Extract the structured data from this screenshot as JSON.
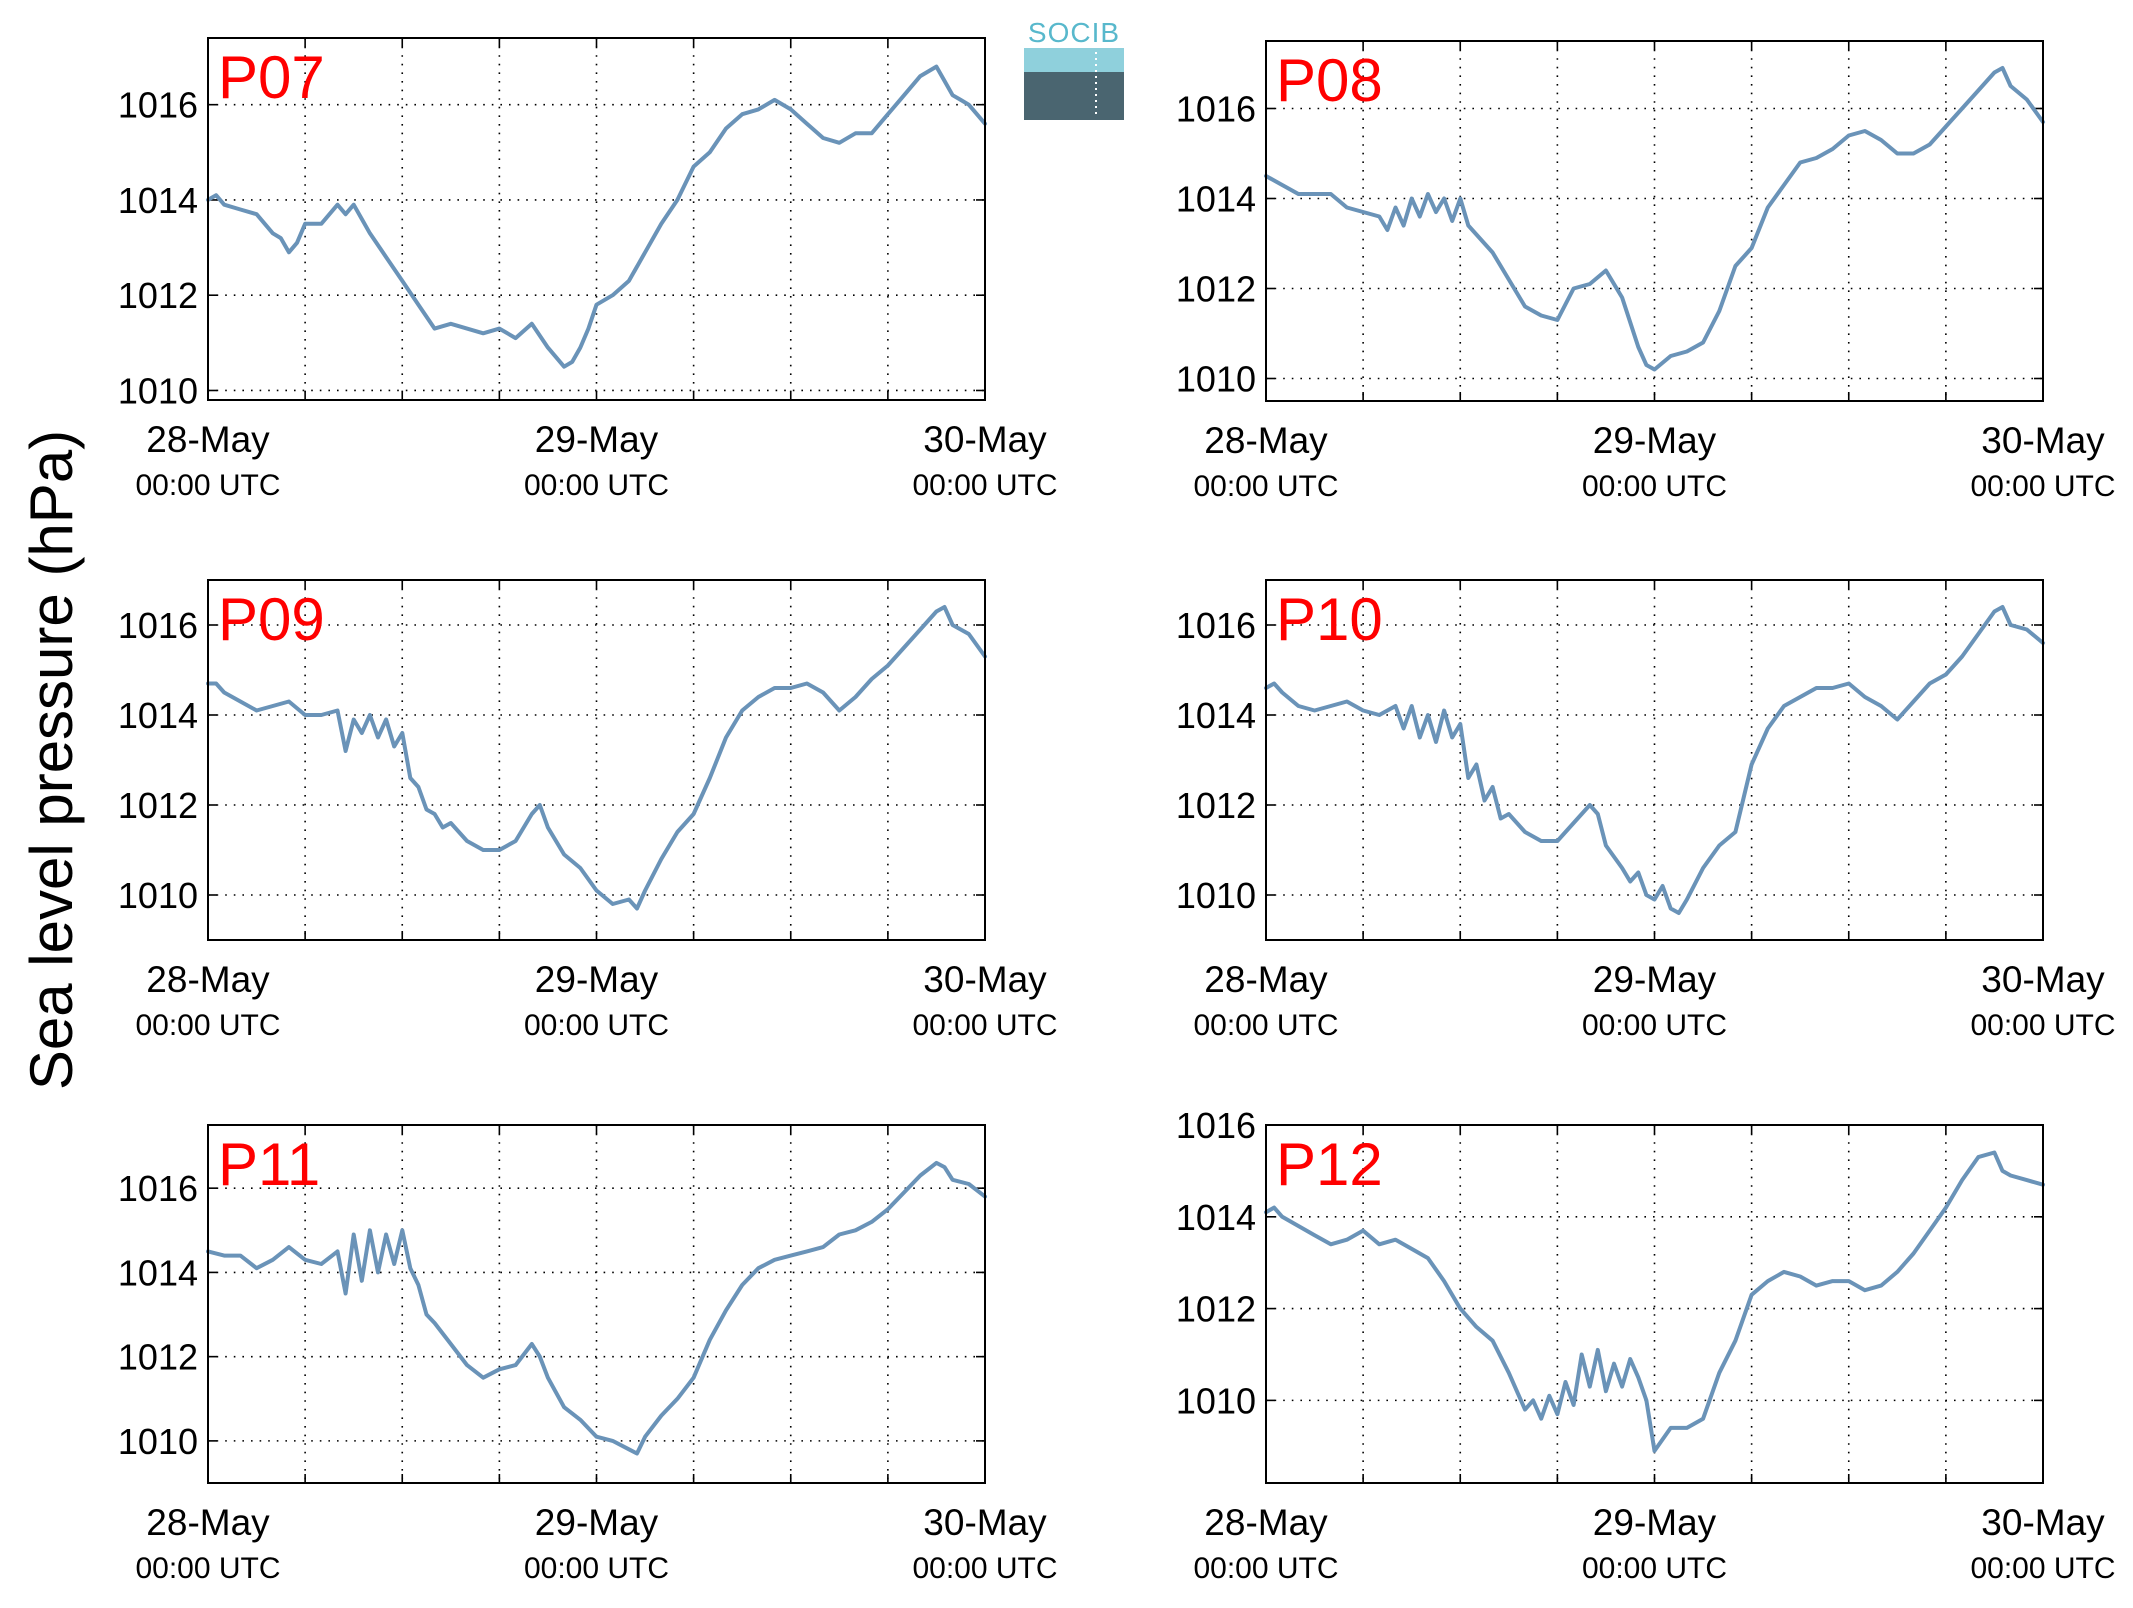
{
  "figure": {
    "ylabel": "Sea level pressure (hPa)",
    "logo_text": "SOCIB",
    "line_color": "#6a93b8",
    "label_color": "#ff0000"
  },
  "chart_data": [
    {
      "type": "line",
      "station": "P07",
      "xlim": [
        0,
        48
      ],
      "ylim": [
        1009.8,
        1017.4
      ],
      "yticks": [
        1010,
        1012,
        1014,
        1016
      ],
      "xticks": [
        {
          "date": "28-May",
          "time": "00:00 UTC",
          "hour": 0
        },
        {
          "date": "29-May",
          "time": "00:00 UTC",
          "hour": 24
        },
        {
          "date": "30-May",
          "time": "00:00 UTC",
          "hour": 48
        }
      ],
      "grid": true,
      "series": [
        {
          "x": [
            0,
            0.5,
            1,
            2,
            3,
            4,
            4.5,
            5,
            5.5,
            6,
            7,
            8,
            8.5,
            9,
            9.5,
            10,
            11,
            12,
            13,
            14,
            15,
            16,
            17,
            18,
            19,
            20,
            21,
            22,
            22.5,
            23,
            23.5,
            24,
            25,
            26,
            27,
            28,
            29,
            30,
            31,
            32,
            33,
            34,
            35,
            36,
            37,
            38,
            39,
            40,
            41,
            42,
            43,
            44,
            45,
            45.5,
            46,
            46.5,
            47,
            48
          ],
          "y": [
            1014.0,
            1014.1,
            1013.9,
            1013.8,
            1013.7,
            1013.3,
            1013.2,
            1012.9,
            1013.1,
            1013.5,
            1013.5,
            1013.9,
            1013.7,
            1013.9,
            1013.6,
            1013.3,
            1012.8,
            1012.3,
            1011.8,
            1011.3,
            1011.4,
            1011.3,
            1011.2,
            1011.3,
            1011.1,
            1011.4,
            1010.9,
            1010.5,
            1010.6,
            1010.9,
            1011.3,
            1011.8,
            1012.0,
            1012.3,
            1012.9,
            1013.5,
            1014.0,
            1014.7,
            1015.0,
            1015.5,
            1015.8,
            1015.9,
            1016.1,
            1015.9,
            1015.6,
            1015.3,
            1015.2,
            1015.4,
            1015.4,
            1015.8,
            1016.2,
            1016.6,
            1016.8,
            1016.5,
            1016.2,
            1016.1,
            1016.0,
            1015.6
          ]
        }
      ]
    },
    {
      "type": "line",
      "station": "P08",
      "xlim": [
        0,
        48
      ],
      "ylim": [
        1009.5,
        1017.5
      ],
      "yticks": [
        1010,
        1012,
        1014,
        1016
      ],
      "xticks": [
        {
          "date": "28-May",
          "time": "00:00 UTC",
          "hour": 0
        },
        {
          "date": "29-May",
          "time": "00:00 UTC",
          "hour": 24
        },
        {
          "date": "30-May",
          "time": "00:00 UTC",
          "hour": 48
        }
      ],
      "grid": true,
      "series": [
        {
          "x": [
            0,
            1,
            2,
            3,
            4,
            5,
            6,
            7,
            7.5,
            8,
            8.5,
            9,
            9.5,
            10,
            10.5,
            11,
            11.5,
            12,
            12.5,
            13,
            14,
            15,
            16,
            17,
            18,
            19,
            20,
            21,
            22,
            23,
            23.5,
            24,
            25,
            26,
            27,
            28,
            29,
            30,
            31,
            32,
            33,
            34,
            35,
            36,
            37,
            38,
            39,
            40,
            41,
            42,
            43,
            44,
            45,
            45.5,
            46,
            47,
            48
          ],
          "y": [
            1014.5,
            1014.3,
            1014.1,
            1014.1,
            1014.1,
            1013.8,
            1013.7,
            1013.6,
            1013.3,
            1013.8,
            1013.4,
            1014.0,
            1013.6,
            1014.1,
            1013.7,
            1014.0,
            1013.5,
            1014.0,
            1013.4,
            1013.2,
            1012.8,
            1012.2,
            1011.6,
            1011.4,
            1011.3,
            1012.0,
            1012.1,
            1012.4,
            1011.8,
            1010.7,
            1010.3,
            1010.2,
            1010.5,
            1010.6,
            1010.8,
            1011.5,
            1012.5,
            1012.9,
            1013.8,
            1014.3,
            1014.8,
            1014.9,
            1015.1,
            1015.4,
            1015.5,
            1015.3,
            1015.0,
            1015.0,
            1015.2,
            1015.6,
            1016.0,
            1016.4,
            1016.8,
            1016.9,
            1016.5,
            1016.2,
            1015.7
          ]
        }
      ]
    },
    {
      "type": "line",
      "station": "P09",
      "xlim": [
        0,
        48
      ],
      "ylim": [
        1009.0,
        1017.0
      ],
      "yticks": [
        1010,
        1012,
        1014,
        1016
      ],
      "xticks": [
        {
          "date": "28-May",
          "time": "00:00 UTC",
          "hour": 0
        },
        {
          "date": "29-May",
          "time": "00:00 UTC",
          "hour": 24
        },
        {
          "date": "30-May",
          "time": "00:00 UTC",
          "hour": 48
        }
      ],
      "grid": true,
      "series": [
        {
          "x": [
            0,
            0.5,
            1,
            2,
            3,
            4,
            5,
            6,
            7,
            8,
            8.5,
            9,
            9.5,
            10,
            10.5,
            11,
            11.5,
            12,
            12.5,
            13,
            13.5,
            14,
            14.5,
            15,
            16,
            17,
            18,
            19,
            20,
            20.5,
            21,
            22,
            23,
            24,
            25,
            26,
            26.5,
            27,
            28,
            29,
            30,
            31,
            32,
            33,
            34,
            35,
            36,
            37,
            38,
            39,
            40,
            41,
            42,
            43,
            44,
            45,
            45.5,
            46,
            47,
            48
          ],
          "y": [
            1014.7,
            1014.7,
            1014.5,
            1014.3,
            1014.1,
            1014.2,
            1014.3,
            1014.0,
            1014.0,
            1014.1,
            1013.2,
            1013.9,
            1013.6,
            1014.0,
            1013.5,
            1013.9,
            1013.3,
            1013.6,
            1012.6,
            1012.4,
            1011.9,
            1011.8,
            1011.5,
            1011.6,
            1011.2,
            1011.0,
            1011.0,
            1011.2,
            1011.8,
            1012.0,
            1011.5,
            1010.9,
            1010.6,
            1010.1,
            1009.8,
            1009.9,
            1009.7,
            1010.1,
            1010.8,
            1011.4,
            1011.8,
            1012.6,
            1013.5,
            1014.1,
            1014.4,
            1014.6,
            1014.6,
            1014.7,
            1014.5,
            1014.1,
            1014.4,
            1014.8,
            1015.1,
            1015.5,
            1015.9,
            1016.3,
            1016.4,
            1016.0,
            1015.8,
            1015.3
          ]
        }
      ]
    },
    {
      "type": "line",
      "station": "P10",
      "xlim": [
        0,
        48
      ],
      "ylim": [
        1009.0,
        1017.0
      ],
      "yticks": [
        1010,
        1012,
        1014,
        1016
      ],
      "xticks": [
        {
          "date": "28-May",
          "time": "00:00 UTC",
          "hour": 0
        },
        {
          "date": "29-May",
          "time": "00:00 UTC",
          "hour": 24
        },
        {
          "date": "30-May",
          "time": "00:00 UTC",
          "hour": 48
        }
      ],
      "grid": true,
      "series": [
        {
          "x": [
            0,
            0.5,
            1,
            2,
            3,
            4,
            5,
            6,
            7,
            8,
            8.5,
            9,
            9.5,
            10,
            10.5,
            11,
            11.5,
            12,
            12.5,
            13,
            13.5,
            14,
            14.5,
            15,
            16,
            17,
            18,
            19,
            20,
            20.5,
            21,
            22,
            22.5,
            23,
            23.5,
            24,
            24.5,
            25,
            25.5,
            26,
            27,
            28,
            29,
            30,
            31,
            32,
            33,
            34,
            35,
            36,
            37,
            38,
            39,
            40,
            41,
            42,
            43,
            44,
            45,
            45.5,
            46,
            47,
            48
          ],
          "y": [
            1014.6,
            1014.7,
            1014.5,
            1014.2,
            1014.1,
            1014.2,
            1014.3,
            1014.1,
            1014.0,
            1014.2,
            1013.7,
            1014.2,
            1013.5,
            1014.0,
            1013.4,
            1014.1,
            1013.5,
            1013.8,
            1012.6,
            1012.9,
            1012.1,
            1012.4,
            1011.7,
            1011.8,
            1011.4,
            1011.2,
            1011.2,
            1011.6,
            1012.0,
            1011.8,
            1011.1,
            1010.6,
            1010.3,
            1010.5,
            1010.0,
            1009.9,
            1010.2,
            1009.7,
            1009.6,
            1009.9,
            1010.6,
            1011.1,
            1011.4,
            1012.9,
            1013.7,
            1014.2,
            1014.4,
            1014.6,
            1014.6,
            1014.7,
            1014.4,
            1014.2,
            1013.9,
            1014.3,
            1014.7,
            1014.9,
            1015.3,
            1015.8,
            1016.3,
            1016.4,
            1016.0,
            1015.9,
            1015.6
          ]
        }
      ]
    },
    {
      "type": "line",
      "station": "P11",
      "xlim": [
        0,
        48
      ],
      "ylim": [
        1009.0,
        1017.5
      ],
      "yticks": [
        1010,
        1012,
        1014,
        1016
      ],
      "xticks": [
        {
          "date": "28-May",
          "time": "00:00 UTC",
          "hour": 0
        },
        {
          "date": "29-May",
          "time": "00:00 UTC",
          "hour": 24
        },
        {
          "date": "30-May",
          "time": "00:00 UTC",
          "hour": 48
        }
      ],
      "grid": true,
      "series": [
        {
          "x": [
            0,
            1,
            2,
            3,
            4,
            5,
            6,
            7,
            8,
            8.5,
            9,
            9.5,
            10,
            10.5,
            11,
            11.5,
            12,
            12.5,
            13,
            13.5,
            14,
            15,
            16,
            17,
            18,
            19,
            20,
            20.5,
            21,
            22,
            23,
            24,
            25,
            26,
            26.5,
            27,
            28,
            29,
            30,
            31,
            32,
            33,
            34,
            35,
            36,
            37,
            38,
            39,
            40,
            41,
            42,
            43,
            44,
            45,
            45.5,
            46,
            47,
            48
          ],
          "y": [
            1014.5,
            1014.4,
            1014.4,
            1014.1,
            1014.3,
            1014.6,
            1014.3,
            1014.2,
            1014.5,
            1013.5,
            1014.9,
            1013.8,
            1015.0,
            1014.0,
            1014.9,
            1014.2,
            1015.0,
            1014.1,
            1013.7,
            1013.0,
            1012.8,
            1012.3,
            1011.8,
            1011.5,
            1011.7,
            1011.8,
            1012.3,
            1012.0,
            1011.5,
            1010.8,
            1010.5,
            1010.1,
            1010.0,
            1009.8,
            1009.7,
            1010.1,
            1010.6,
            1011.0,
            1011.5,
            1012.4,
            1013.1,
            1013.7,
            1014.1,
            1014.3,
            1014.4,
            1014.5,
            1014.6,
            1014.9,
            1015.0,
            1015.2,
            1015.5,
            1015.9,
            1016.3,
            1016.6,
            1016.5,
            1016.2,
            1016.1,
            1015.8
          ]
        }
      ]
    },
    {
      "type": "line",
      "station": "P12",
      "xlim": [
        0,
        48
      ],
      "ylim": [
        1008.2,
        1016.0
      ],
      "yticks": [
        1010,
        1012,
        1014,
        1016
      ],
      "xticks": [
        {
          "date": "28-May",
          "time": "00:00 UTC",
          "hour": 0
        },
        {
          "date": "29-May",
          "time": "00:00 UTC",
          "hour": 24
        },
        {
          "date": "30-May",
          "time": "00:00 UTC",
          "hour": 48
        }
      ],
      "grid": true,
      "series": [
        {
          "x": [
            0,
            0.5,
            1,
            2,
            3,
            4,
            5,
            6,
            7,
            8,
            9,
            10,
            11,
            12,
            13,
            14,
            15,
            16,
            16.5,
            17,
            17.5,
            18,
            18.5,
            19,
            19.5,
            20,
            20.5,
            21,
            21.5,
            22,
            22.5,
            23,
            23.5,
            24,
            25,
            26,
            27,
            28,
            29,
            30,
            31,
            32,
            33,
            34,
            35,
            36,
            37,
            38,
            39,
            40,
            41,
            42,
            43,
            44,
            45,
            45.5,
            46,
            47,
            48
          ],
          "y": [
            1014.1,
            1014.2,
            1014.0,
            1013.8,
            1013.6,
            1013.4,
            1013.5,
            1013.7,
            1013.4,
            1013.5,
            1013.3,
            1013.1,
            1012.6,
            1012.0,
            1011.6,
            1011.3,
            1010.6,
            1009.8,
            1010.0,
            1009.6,
            1010.1,
            1009.7,
            1010.4,
            1009.9,
            1011.0,
            1010.3,
            1011.1,
            1010.2,
            1010.8,
            1010.3,
            1010.9,
            1010.5,
            1010.0,
            1008.9,
            1009.4,
            1009.4,
            1009.6,
            1010.6,
            1011.3,
            1012.3,
            1012.6,
            1012.8,
            1012.7,
            1012.5,
            1012.6,
            1012.6,
            1012.4,
            1012.5,
            1012.8,
            1013.2,
            1013.7,
            1014.2,
            1014.8,
            1015.3,
            1015.4,
            1015.0,
            1014.9,
            1014.8,
            1014.7
          ]
        }
      ]
    }
  ]
}
